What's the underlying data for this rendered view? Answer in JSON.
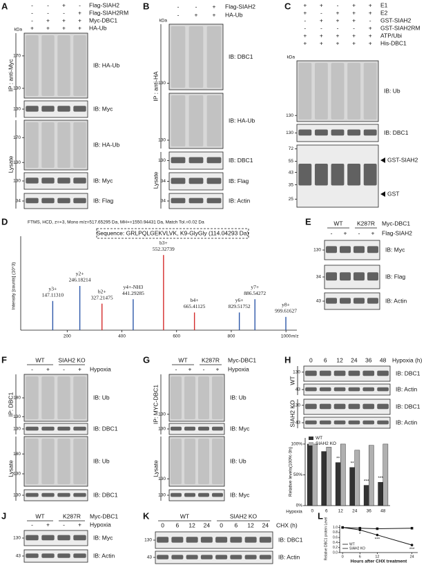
{
  "panels": {
    "A": {
      "label": "A",
      "kda": "kDa",
      "rows": [
        {
          "name": "Flag-SIAH2",
          "signs": [
            "-",
            "-",
            "+",
            "-"
          ]
        },
        {
          "name": "Flag-SIAH2RM",
          "signs": [
            "-",
            "-",
            "-",
            "+"
          ]
        },
        {
          "name": "Myc-DBC1",
          "signs": [
            "-",
            "+",
            "+",
            "+"
          ]
        },
        {
          "name": "HA-Ub",
          "signs": [
            "+",
            "+",
            "+",
            "+"
          ]
        }
      ],
      "blots": [
        {
          "label": "IB: HA-Ub",
          "markers": [
            "170",
            "130"
          ]
        },
        {
          "label": "IB: Myc",
          "markers": [
            "130"
          ]
        },
        {
          "label": "IB: HA-Ub",
          "markers": [
            "170",
            "130"
          ]
        },
        {
          "label": "IB: Myc",
          "markers": [
            "130"
          ]
        },
        {
          "label": "IB: Flag",
          "markers": [
            "34"
          ]
        }
      ],
      "sides": [
        "IP : anti-Myc",
        "Lysate"
      ]
    },
    "B": {
      "label": "B",
      "kda": "kDa",
      "rows": [
        {
          "name": "Flag-SIAH2",
          "signs": [
            "-",
            "-",
            "+"
          ]
        },
        {
          "name": "HA-Ub",
          "signs": [
            "-",
            "+",
            "+"
          ]
        }
      ],
      "blots": [
        {
          "label": "IB: DBC1",
          "markers": [
            "130"
          ]
        },
        {
          "label": "IB: HA-Ub",
          "markers": [
            "130"
          ]
        },
        {
          "label": "IB: DBC1",
          "markers": [
            "130"
          ]
        },
        {
          "label": "IB: Flag",
          "markers": [
            "34"
          ]
        },
        {
          "label": "IB: Actin",
          "markers": [
            "34"
          ]
        }
      ],
      "sides": [
        "IP : anti-HA",
        "Lysate"
      ]
    },
    "C": {
      "label": "C",
      "kda": "kDa",
      "rows": [
        {
          "name": "E1",
          "signs": [
            "+",
            "+",
            "-",
            "+",
            "+"
          ]
        },
        {
          "name": "E2",
          "signs": [
            "+",
            "-",
            "+",
            "+",
            "+"
          ]
        },
        {
          "name": "GST-SIAH2",
          "signs": [
            "-",
            "+",
            "+",
            "+",
            "-"
          ]
        },
        {
          "name": "GST-SIAH2RM",
          "signs": [
            "-",
            "-",
            "-",
            "-",
            "+"
          ]
        },
        {
          "name": "ATP/Ubi",
          "signs": [
            "+",
            "+",
            "+",
            "+",
            "+"
          ]
        },
        {
          "name": "His-DBC1",
          "signs": [
            "+",
            "+",
            "+",
            "+",
            "+"
          ]
        }
      ],
      "blots": [
        {
          "label": "IB: Ub",
          "markers": [
            "130"
          ]
        },
        {
          "label": "IB: DBC1",
          "markers": [
            "130"
          ]
        },
        {
          "label": "",
          "markers": [
            "72",
            "55",
            "43",
            "35",
            "25"
          ]
        }
      ],
      "arrows": [
        "GST-SIAH2",
        "GST"
      ]
    },
    "D": {
      "label": "D",
      "type": "spectrum",
      "title": "FTMS, HCD, z=+3, Mono m/z=517.65295 Da, MH+=1550.94431 Da, Match Tol.=0.02 Da",
      "sequence": "Sequence: GRLPQLGEKVLVK, K9-GlyGly (114.04293 Da)",
      "ylabel": "Intensity [counts] (10^3)",
      "xlabel": "m/z",
      "xlim": [
        30,
        1040
      ],
      "ylim": [
        0,
        100
      ],
      "xticks": [
        200,
        400,
        600,
        800,
        1000
      ],
      "peaks": [
        {
          "name": "y3+",
          "mz": 147.1131,
          "mz_label": "147.11310",
          "intensity": 33,
          "color": "#2b56a8"
        },
        {
          "name": "y2+",
          "mz": 246.18214,
          "mz_label": "246.18214",
          "intensity": 50,
          "color": "#2b56a8"
        },
        {
          "name": "b2+",
          "mz": 327.21475,
          "mz_label": "327.21475",
          "intensity": 30,
          "color": "#d42a2a"
        },
        {
          "name": "y4+-NH3",
          "mz": 441.29285,
          "mz_label": "441.29285",
          "intensity": 35,
          "color": "#2b56a8"
        },
        {
          "name": "b3+",
          "mz": 552.32739,
          "mz_label": "552.32739",
          "intensity": 85,
          "color": "#d42a2a"
        },
        {
          "name": "b4+",
          "mz": 665.41125,
          "mz_label": "665.41125",
          "intensity": 20,
          "color": "#d42a2a"
        },
        {
          "name": "y6+",
          "mz": 829.51752,
          "mz_label": "829.51752",
          "intensity": 20,
          "color": "#2b56a8"
        },
        {
          "name": "y7+",
          "mz": 886.54272,
          "mz_label": "886.54272",
          "intensity": 35,
          "color": "#2b56a8"
        },
        {
          "name": "y8+",
          "mz": 999.61627,
          "mz_label": "999.61627",
          "intensity": 15,
          "color": "#2b56a8"
        }
      ]
    },
    "E": {
      "label": "E",
      "groups": [
        "WT",
        "K287R"
      ],
      "group_label": "Myc-DBC1",
      "rows": [
        {
          "name": "Flag-SIAH2",
          "signs": [
            "-",
            "+",
            "-",
            "+"
          ]
        }
      ],
      "blots": [
        {
          "label": "IB: Myc",
          "markers": [
            "130"
          ]
        },
        {
          "label": "IB: Flag",
          "markers": [
            "34"
          ]
        },
        {
          "label": "IB: Actin",
          "markers": [
            "43"
          ]
        }
      ]
    },
    "F": {
      "label": "F",
      "groups": [
        "WT",
        "SIAH2 KO"
      ],
      "rows": [
        {
          "name": "Hypoxia",
          "signs": [
            "-",
            "+",
            "-",
            "+"
          ]
        }
      ],
      "blots": [
        {
          "label": "IB: Ub",
          "markers": [
            "180",
            "130"
          ]
        },
        {
          "label": "IB: DBC1",
          "markers": [
            "130"
          ]
        },
        {
          "label": "IB: Ub",
          "markers": [
            "180",
            "130"
          ]
        },
        {
          "label": "IB: DBC1",
          "markers": [
            "130"
          ]
        }
      ],
      "sides": [
        "IP: DBC1",
        "Lysate"
      ]
    },
    "G": {
      "label": "G",
      "groups": [
        "WT",
        "K287R"
      ],
      "group_label": "Myc-DBC1",
      "rows": [
        {
          "name": "Hypoxia",
          "signs": [
            "-",
            "+",
            "-",
            "+"
          ]
        }
      ],
      "blots": [
        {
          "label": "IB: Ub",
          "markers": [
            "130"
          ]
        },
        {
          "label": "IB: Myc",
          "markers": [
            "130"
          ]
        },
        {
          "label": "IB: Ub",
          "markers": [
            "130"
          ]
        },
        {
          "label": "IB: Myc",
          "markers": [
            "130"
          ]
        }
      ],
      "sides": [
        "IP: MYC-DBC1",
        "Lysate"
      ]
    },
    "H": {
      "label": "H",
      "rows": [
        {
          "name": "Hypoxia (h)",
          "signs": [
            "0",
            "6",
            "12",
            "24",
            "36",
            "48"
          ]
        }
      ],
      "blots": [
        {
          "label": "IB: DBC1",
          "markers": [
            "130"
          ]
        },
        {
          "label": "IB: Actin",
          "markers": [
            "43"
          ]
        },
        {
          "label": "IB: DBC1",
          "markers": [
            "130"
          ]
        },
        {
          "label": "IB: Actin",
          "markers": [
            "43"
          ]
        }
      ],
      "sides": [
        "WT",
        "SIAH2 KO"
      ],
      "chart": {
        "type": "bar",
        "categories": [
          "0",
          "6",
          "12",
          "24",
          "36",
          "48"
        ],
        "series": [
          {
            "name": "WT",
            "color": "#333333",
            "values": [
              100,
              88,
              70,
              62,
              33,
              38
            ]
          },
          {
            "name": "SIAH2 KO",
            "color": "#b0b0b0",
            "values": [
              100,
              95,
              100,
              90,
              98,
              100
            ]
          }
        ],
        "ylim": [
          0,
          110
        ],
        "yticks": [
          {
            "value": 0,
            "label": "0%"
          },
          {
            "value": 50,
            "label": "50%"
          },
          {
            "value": 100,
            "label": "100%"
          }
        ],
        "ylabel": "Relative levels(100% 0h)",
        "xlabel": "Hypoxia",
        "annotations": [
          "**",
          "**",
          "***",
          "***"
        ]
      }
    },
    "J": {
      "label": "J",
      "groups": [
        "WT",
        "K287R"
      ],
      "group_label": "Myc-DBC1",
      "rows": [
        {
          "name": "Hypoxia",
          "signs": [
            "-",
            "+",
            "-",
            "+"
          ]
        }
      ],
      "blots": [
        {
          "label": "IB: Myc",
          "markers": [
            "130"
          ]
        },
        {
          "label": "IB: Actin",
          "markers": [
            "43"
          ]
        }
      ]
    },
    "K": {
      "label": "K",
      "groups": [
        "WT",
        "SIAH2 KO"
      ],
      "rows": [
        {
          "name": "CHX (h)",
          "signs": [
            "0",
            "6",
            "12",
            "24",
            "0",
            "6",
            "12",
            "24"
          ]
        }
      ],
      "blots": [
        {
          "label": "IB: DBC1",
          "markers": [
            "130"
          ]
        },
        {
          "label": "IB: Actin",
          "markers": [
            "43"
          ]
        }
      ]
    },
    "L": {
      "label": "L",
      "chart": {
        "type": "line",
        "x": [
          0,
          6,
          12,
          24
        ],
        "series": [
          {
            "name": "WT",
            "color": "#111111",
            "values": [
              1.0,
              0.9,
              0.7,
              0.3
            ]
          },
          {
            "name": "SIAH2 KO",
            "color": "#111111",
            "values": [
              1.0,
              0.97,
              0.95,
              0.97
            ]
          }
        ],
        "xlim": [
          -1,
          26
        ],
        "ylim": [
          0,
          1.1
        ],
        "xticks": [
          0,
          6,
          12,
          24
        ],
        "yticks": [
          {
            "value": 0,
            "label": "0.0"
          },
          {
            "value": 0.2,
            "label": "0.2"
          },
          {
            "value": 0.4,
            "label": "0.4"
          },
          {
            "value": 0.6,
            "label": "0.6"
          },
          {
            "value": 0.8,
            "label": "0.8"
          },
          {
            "value": 1,
            "label": "1.0"
          }
        ],
        "xlabel": "Hours after CHX treatment",
        "ylabel": "Relative DBC1 protein Level",
        "annotations": [
          "*",
          "***",
          "***"
        ]
      }
    }
  }
}
